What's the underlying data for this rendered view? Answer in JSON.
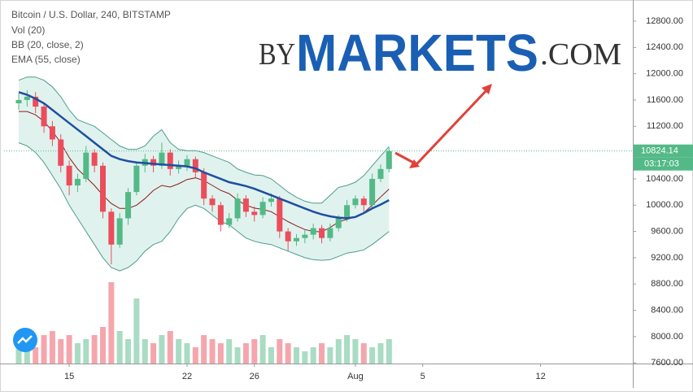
{
  "chart_data": {
    "type": "candlestick",
    "title": "Bitcoin / U.S. Dollar, 240, BITSTAMP",
    "watermark": {
      "prefix": "BY",
      "brand": "MARKETS",
      "suffix": ".COM"
    },
    "x": [
      12,
      12.5,
      13,
      13.5,
      14,
      14.5,
      15,
      15.5,
      16,
      16.5,
      17,
      17.5,
      18,
      18.5,
      19,
      19.5,
      20,
      20.5,
      21,
      21.5,
      22,
      22.5,
      23,
      23.5,
      24,
      24.5,
      25,
      25.5,
      26,
      26.5,
      27,
      27.5,
      28,
      28.5,
      29,
      29.5,
      30,
      30.5,
      31,
      31.5,
      32,
      32.5,
      33,
      33.5,
      34
    ],
    "open": [
      11550,
      11600,
      11650,
      11500,
      11200,
      11000,
      10600,
      10300,
      10400,
      10800,
      10600,
      9900,
      9400,
      9800,
      10200,
      10600,
      10700,
      10600,
      10800,
      10550,
      10600,
      10700,
      10500,
      10100,
      10000,
      9700,
      9800,
      10100,
      9900,
      9850,
      10050,
      10100,
      9600,
      9450,
      9500,
      9550,
      9650,
      9500,
      9650,
      9800,
      10000,
      10100,
      10000,
      10400,
      10550
    ],
    "high": [
      11700,
      11750,
      11720,
      11560,
      11280,
      11080,
      10680,
      10480,
      10900,
      10850,
      10650,
      9950,
      9880,
      10260,
      10650,
      10780,
      10750,
      10950,
      10850,
      10680,
      10760,
      10740,
      10560,
      10150,
      10050,
      9880,
      10180,
      10150,
      9980,
      10120,
      10180,
      10140,
      9650,
      9560,
      9620,
      9720,
      9700,
      9720,
      9850,
      10080,
      10150,
      10140,
      10480,
      10620,
      10880
    ],
    "low": [
      11450,
      11500,
      11400,
      11100,
      10900,
      10500,
      10150,
      10200,
      10350,
      10500,
      9800,
      9100,
      9350,
      9700,
      10150,
      10500,
      10500,
      10550,
      10450,
      10480,
      10520,
      10420,
      10000,
      9900,
      9600,
      9650,
      9750,
      9820,
      9750,
      9800,
      9980,
      9500,
      9300,
      9380,
      9420,
      9480,
      9420,
      9450,
      9600,
      9750,
      9950,
      9900,
      9950,
      10350,
      10500
    ],
    "close": [
      11600,
      11650,
      11500,
      11200,
      11000,
      10600,
      10300,
      10400,
      10800,
      10600,
      9900,
      9400,
      9800,
      10200,
      10600,
      10700,
      10600,
      10800,
      10550,
      10600,
      10700,
      10500,
      10100,
      10000,
      9700,
      9800,
      10100,
      9900,
      9850,
      10050,
      10100,
      9600,
      9450,
      9500,
      9550,
      9650,
      9500,
      9650,
      9800,
      10000,
      10100,
      10000,
      10400,
      10550,
      10824.14
    ],
    "up_color": "#53b987",
    "down_color": "#eb4d5c",
    "volume": {
      "name": "Vol (20)",
      "values": [
        30,
        25,
        20,
        35,
        40,
        30,
        35,
        25,
        30,
        35,
        45,
        100,
        40,
        30,
        80,
        30,
        25,
        35,
        40,
        30,
        25,
        20,
        35,
        30,
        25,
        30,
        20,
        25,
        30,
        35,
        20,
        30,
        25,
        20,
        15,
        20,
        25,
        20,
        30,
        35,
        30,
        25,
        20,
        25,
        30
      ]
    },
    "bollinger": {
      "name": "BB (20, close, 2)",
      "color": "#4f9c8c",
      "basis_color": "#8b1c1c",
      "fill": "#e0f2ee",
      "upper": [
        11900,
        11950,
        11950,
        11900,
        11800,
        11650,
        11450,
        11300,
        11250,
        11200,
        11100,
        11000,
        10900,
        10850,
        10850,
        10900,
        11050,
        11150,
        10950,
        10850,
        10830,
        10830,
        10800,
        10750,
        10700,
        10650,
        10550,
        10500,
        10460,
        10450,
        10400,
        10300,
        10200,
        10120,
        10060,
        10030,
        10030,
        10150,
        10270,
        10300,
        10350,
        10450,
        10600,
        10750,
        10890
      ],
      "basis": [
        11425,
        11425,
        11375,
        11275,
        11125,
        10950,
        10725,
        10550,
        10425,
        10300,
        10150,
        10025,
        9950,
        9950,
        10000,
        10100,
        10225,
        10300,
        10275,
        10325,
        10390,
        10415,
        10375,
        10300,
        10225,
        10175,
        10075,
        10000,
        9955,
        9935,
        9900,
        9825,
        9750,
        9685,
        9630,
        9600,
        9595,
        9660,
        9745,
        9785,
        9820,
        9885,
        10000,
        10125,
        10245
      ],
      "lower": [
        10950,
        10900,
        10800,
        10650,
        10450,
        10250,
        10000,
        9800,
        9600,
        9400,
        9200,
        9050,
        9000,
        9050,
        9150,
        9300,
        9400,
        9450,
        9600,
        9800,
        9950,
        10000,
        9950,
        9850,
        9750,
        9700,
        9600,
        9500,
        9450,
        9420,
        9400,
        9350,
        9300,
        9250,
        9200,
        9170,
        9160,
        9170,
        9220,
        9270,
        9290,
        9320,
        9400,
        9500,
        9600
      ]
    },
    "ema": {
      "name": "EMA (55, close)",
      "color": "#1e4fa0",
      "values": [
        11720,
        11680,
        11620,
        11550,
        11450,
        11350,
        11250,
        11150,
        11050,
        10950,
        10850,
        10750,
        10700,
        10670,
        10650,
        10640,
        10630,
        10620,
        10610,
        10600,
        10590,
        10560,
        10500,
        10450,
        10400,
        10350,
        10320,
        10290,
        10250,
        10200,
        10150,
        10100,
        10050,
        10000,
        9950,
        9900,
        9860,
        9830,
        9810,
        9800,
        9820,
        9880,
        9950,
        10010,
        10076
      ]
    },
    "last_price": 10824.14,
    "countdown": "03:17:03",
    "xlim": [
      11.13,
      48.48
    ],
    "ylim": [
      7590,
      13060
    ],
    "xticks": [
      15,
      22,
      26,
      {
        "value": 32,
        "label": "Aug"
      },
      {
        "value": 36,
        "label": "5"
      },
      {
        "value": 43,
        "label": "12"
      }
    ],
    "yticks": [
      {
        "value": 7600,
        "label": "7600.00"
      },
      {
        "value": 8000,
        "label": "8000.00"
      },
      {
        "value": 8400,
        "label": "8400.00"
      },
      {
        "value": 8800,
        "label": "8800.00"
      },
      {
        "value": 9200,
        "label": "9200.00"
      },
      {
        "value": 9600,
        "label": "9600.00"
      },
      {
        "value": 10000,
        "label": "10000.00"
      },
      {
        "value": 10400,
        "label": "10400.00"
      },
      {
        "value": 10800,
        "label": "10800.00"
      },
      {
        "value": 11200,
        "label": "11200.00"
      },
      {
        "value": 11600,
        "label": "11600.00"
      },
      {
        "value": 12000,
        "label": "12000.00"
      },
      {
        "value": 12400,
        "label": "12400.00"
      },
      {
        "value": 12800,
        "label": "12800.00"
      }
    ],
    "grid": false
  }
}
